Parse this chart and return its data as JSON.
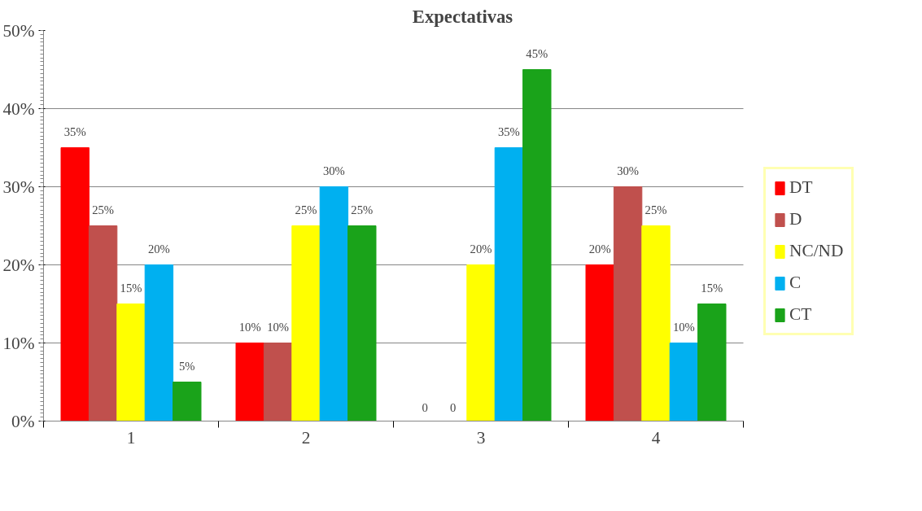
{
  "chart_data": {
    "type": "bar",
    "title": "Expectativas",
    "categories": [
      "1",
      "2",
      "3",
      "4"
    ],
    "series": [
      {
        "name": "DT",
        "color": "#ff0000",
        "values": [
          35,
          10,
          0,
          20
        ],
        "value_labels": [
          "35%",
          "10%",
          "0",
          "20%"
        ]
      },
      {
        "name": "D",
        "color": "#c0504d",
        "values": [
          25,
          10,
          0,
          30
        ],
        "value_labels": [
          "25%",
          "10%",
          "0",
          "30%"
        ]
      },
      {
        "name": "NC/ND",
        "color": "#ffff00",
        "values": [
          15,
          25,
          20,
          25
        ],
        "value_labels": [
          "15%",
          "25%",
          "20%",
          "25%"
        ]
      },
      {
        "name": "C",
        "color": "#00b0f0",
        "values": [
          20,
          30,
          35,
          10
        ],
        "value_labels": [
          "20%",
          "30%",
          "35%",
          "10%"
        ]
      },
      {
        "name": "CT",
        "color": "#1aa31a",
        "values": [
          5,
          25,
          45,
          15
        ],
        "value_labels": [
          "5%",
          "25%",
          "45%",
          "15%"
        ]
      }
    ],
    "ylim": [
      0,
      50
    ],
    "yticks": [
      {
        "value": 0,
        "label": "0%"
      },
      {
        "value": 10,
        "label": "10%"
      },
      {
        "value": 20,
        "label": "20%"
      },
      {
        "value": 30,
        "label": "30%"
      },
      {
        "value": 40,
        "label": "40%"
      },
      {
        "value": 50,
        "label": "50%"
      }
    ],
    "grid": "y",
    "legend": "right"
  }
}
